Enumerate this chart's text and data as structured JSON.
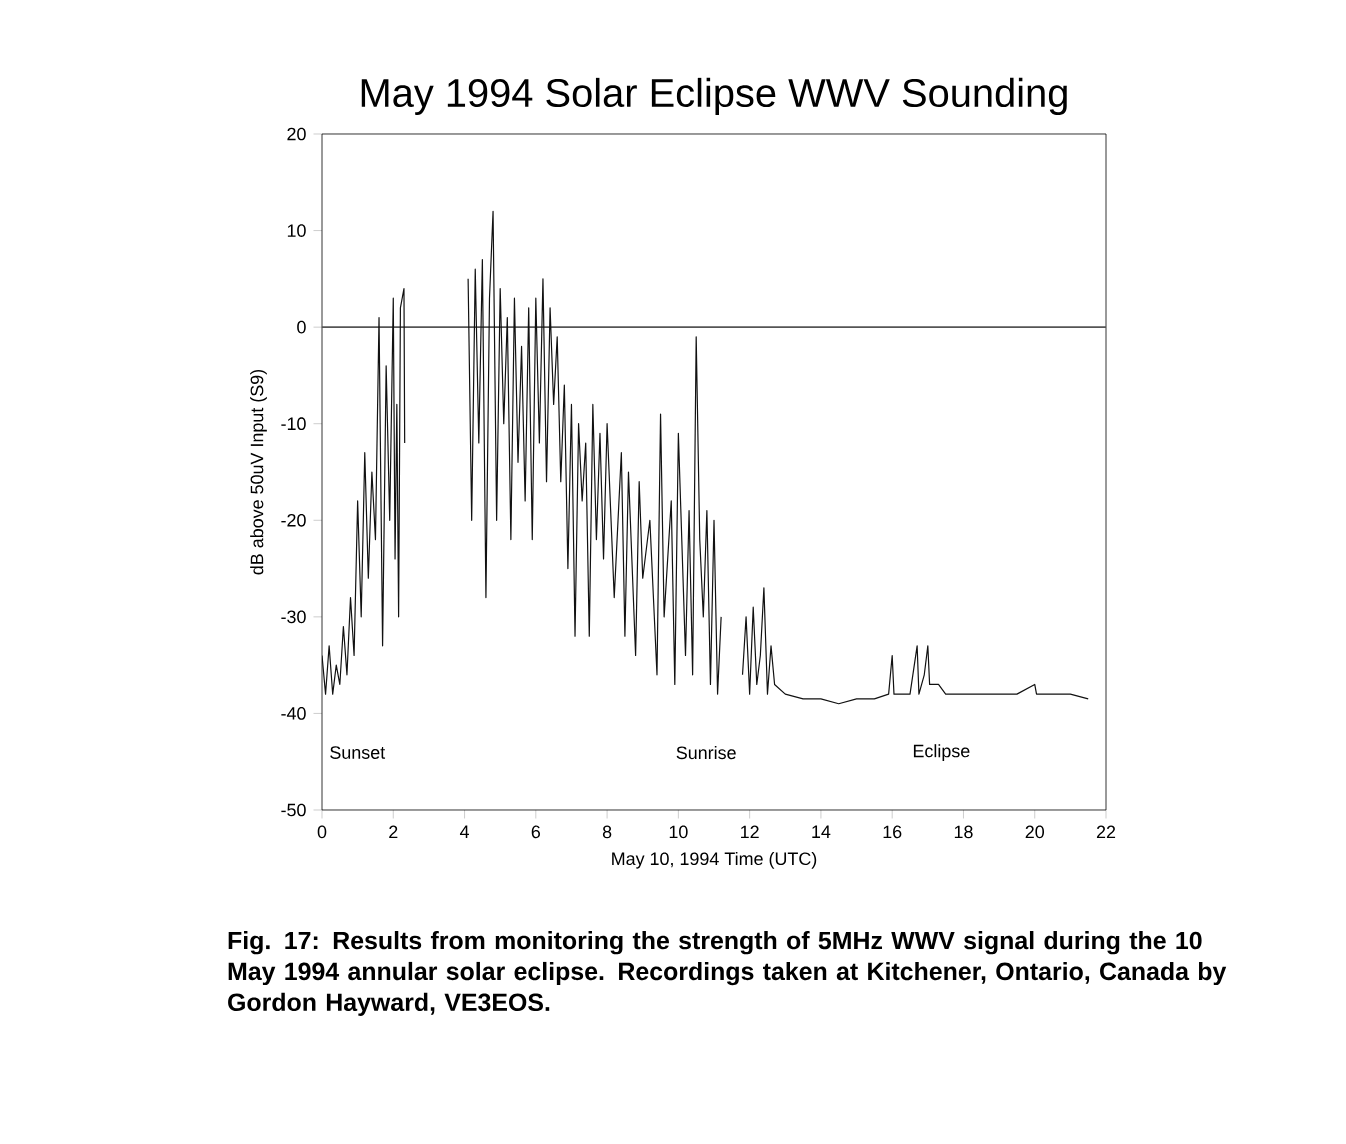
{
  "chart_data": {
    "type": "line",
    "title": "May 1994 Solar Eclipse WWV Sounding",
    "xlabel": "May 10, 1994 Time (UTC)",
    "ylabel": "dB above 50uV Input (S9)",
    "xlim": [
      0,
      22
    ],
    "ylim": [
      -50,
      20
    ],
    "xticks": [
      0,
      2,
      4,
      6,
      8,
      10,
      12,
      14,
      16,
      18,
      20,
      22
    ],
    "yticks": [
      -50,
      -40,
      -30,
      -20,
      -10,
      0,
      10,
      20
    ],
    "grid": false,
    "marker": "none",
    "line_style": "solid",
    "ref_lines": [
      {
        "axis": "y",
        "value": 0,
        "color": "#555555"
      }
    ],
    "annotations": [
      "Sunset",
      "Sunrise",
      "Eclipse",
      "Fig. 17: Results from monitoring the strength of 5MHz WWV signal during the 10 May 1994 annular solar eclipse. Recordings taken at Kitchener, Ontario, Canada by Gordon Hayward, VE3EOS."
    ],
    "series": [
      {
        "color": "#111111",
        "x": [
          0.0,
          0.1,
          0.2,
          0.3,
          0.4,
          0.5,
          0.6,
          0.7,
          0.8,
          0.9,
          1.0,
          1.1,
          1.2,
          1.3,
          1.4,
          1.5,
          1.6,
          1.7,
          1.8,
          1.9,
          2.0,
          2.05,
          2.1,
          2.15,
          2.2,
          2.3,
          2.32,
          3.2,
          4.1,
          4.2,
          4.3,
          4.4,
          4.5,
          4.6,
          4.7,
          4.8,
          4.9,
          5.0,
          5.1,
          5.2,
          5.3,
          5.4,
          5.5,
          5.6,
          5.7,
          5.8,
          5.9,
          6.0,
          6.1,
          6.2,
          6.3,
          6.4,
          6.5,
          6.6,
          6.7,
          6.8,
          6.9,
          7.0,
          7.1,
          7.2,
          7.3,
          7.4,
          7.5,
          7.6,
          7.7,
          7.8,
          7.9,
          8.0,
          8.2,
          8.4,
          8.5,
          8.6,
          8.8,
          8.9,
          9.0,
          9.2,
          9.4,
          9.5,
          9.6,
          9.8,
          9.9,
          10.0,
          10.2,
          10.3,
          10.4,
          10.5,
          10.6,
          10.7,
          10.8,
          10.9,
          11.0,
          11.1,
          11.2,
          11.5,
          11.8,
          11.9,
          12.0,
          12.1,
          12.2,
          12.3,
          12.4,
          12.5,
          12.6,
          12.7,
          13.0,
          13.5,
          14.0,
          14.5,
          15.0,
          15.5,
          15.9,
          16.0,
          16.05,
          16.5,
          16.7,
          16.75,
          16.9,
          17.0,
          17.05,
          17.3,
          17.5,
          18.5,
          19.5,
          20.0,
          20.05,
          21.0,
          21.5
        ],
        "values": [
          -34,
          -38,
          -33,
          -38,
          -35,
          -37,
          -31,
          -36,
          -28,
          -34,
          -18,
          -30,
          -13,
          -26,
          -15,
          -22,
          1,
          -33,
          -4,
          -20,
          3,
          -24,
          -8,
          -30,
          2,
          4,
          -12,
          null,
          5,
          -20,
          6,
          -12,
          7,
          -28,
          3,
          12,
          -20,
          4,
          -10,
          1,
          -22,
          3,
          -14,
          -2,
          -18,
          2,
          -22,
          3,
          -12,
          5,
          -16,
          2,
          -8,
          -1,
          -16,
          -6,
          -25,
          -8,
          -32,
          -10,
          -18,
          -12,
          -32,
          -8,
          -22,
          -11,
          -24,
          -10,
          -28,
          -13,
          -32,
          -15,
          -34,
          -16,
          -26,
          -20,
          -36,
          -9,
          -30,
          -18,
          -37,
          -11,
          -34,
          -19,
          -36,
          -1,
          -22,
          -30,
          -19,
          -37,
          -20,
          -38,
          -30,
          null,
          -36,
          -30,
          -38,
          -29,
          -37,
          -34,
          -27,
          -38,
          -33,
          -37,
          -38,
          -38.5,
          -38.5,
          -39,
          -38.5,
          -38.5,
          -38,
          -34,
          -38,
          -38,
          -33,
          -38,
          -36,
          -33,
          -37,
          -37,
          -38,
          -38,
          -38,
          -37,
          -38,
          -38,
          -38.5
        ]
      }
    ]
  }
}
